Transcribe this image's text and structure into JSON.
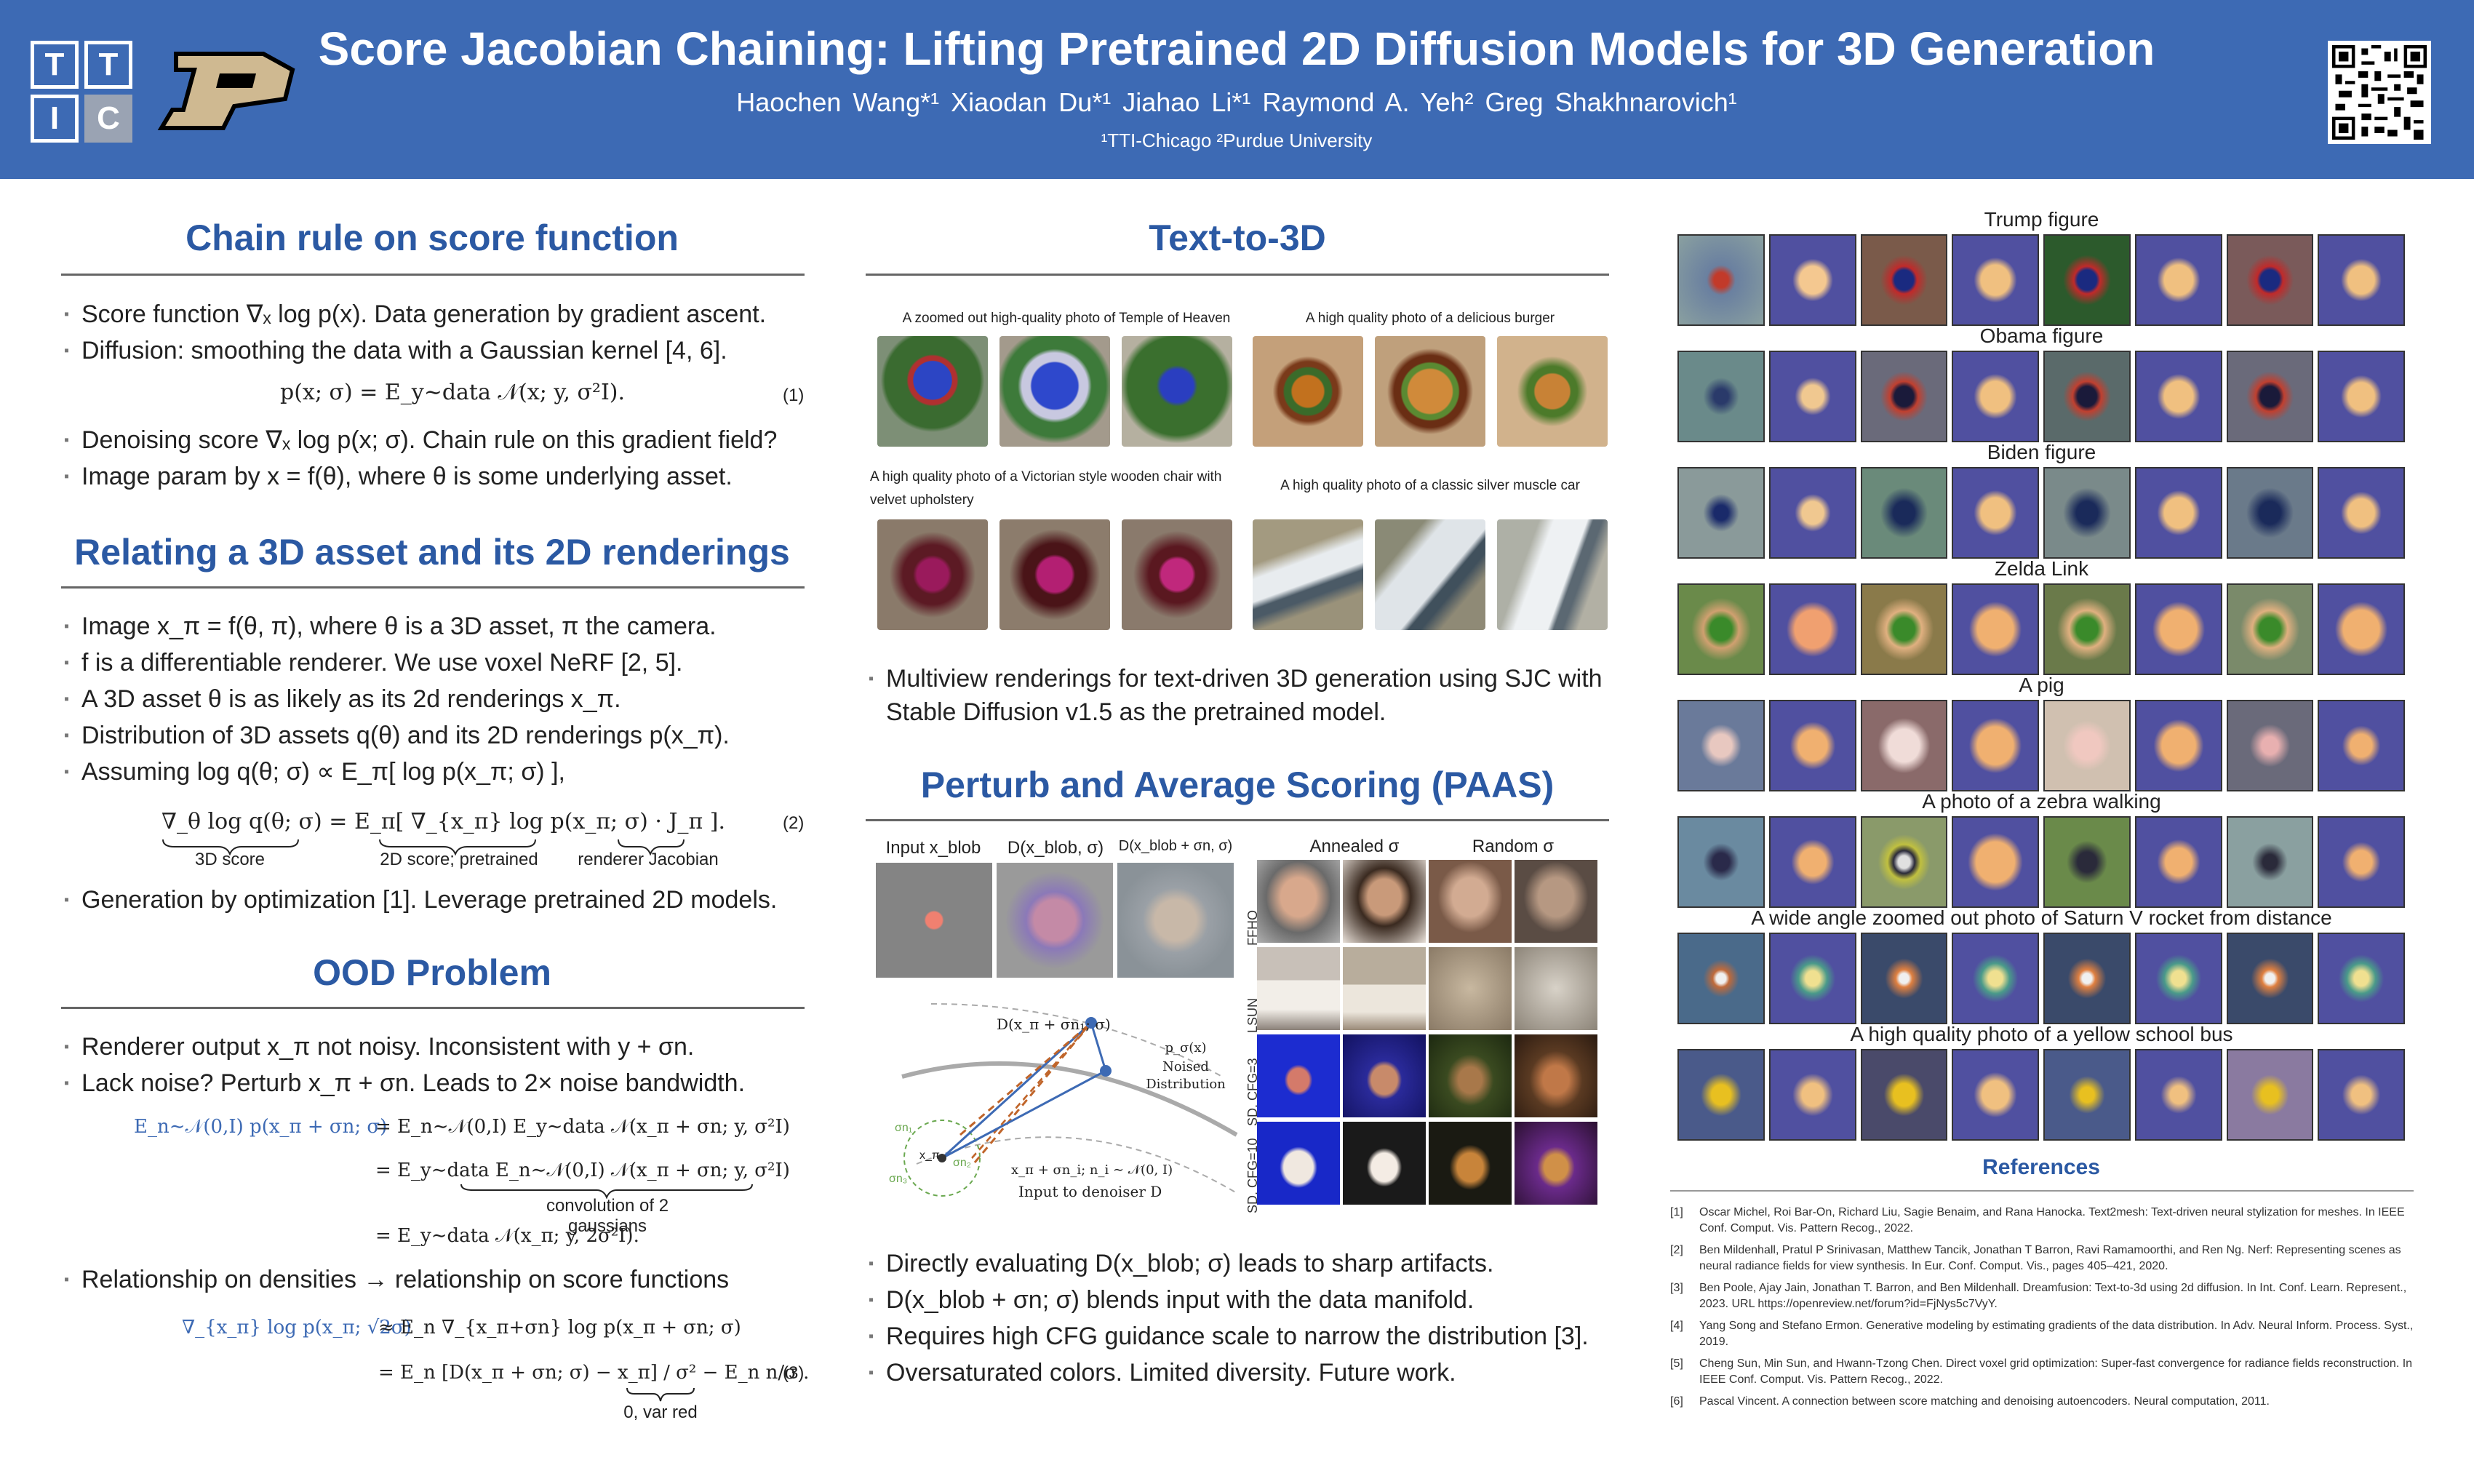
{
  "header": {
    "logo_ttic_letters": [
      "T",
      "T",
      "I",
      "C"
    ],
    "title": "Score Jacobian Chaining: Lifting Pretrained 2D Diffusion Models for 3D Generation",
    "authors": "Haochen Wang*¹   Xiaodan Du*¹   Jiahao Li*¹   Raymond A. Yeh²   Greg Shakhnarovich¹",
    "affiliations": "¹TTI-Chicago      ²Purdue University"
  },
  "sec_chain": {
    "title": "Chain rule on score function",
    "b1": "Score function ∇ₓ log p(x). Data generation by gradient ascent.",
    "b2": "Diffusion: smoothing the data with a Gaussian kernel [4, 6].",
    "eq1": "p(x; σ) = E_y∼data 𝒩(x; y, σ²I).",
    "eq1_num": "(1)",
    "b3": "Denoising score ∇ₓ log p(x; σ). Chain rule on this gradient field?",
    "b4": "Image param by x = f(θ), where θ is some underlying asset."
  },
  "sec_relating": {
    "title": "Relating a 3D asset and its 2D renderings",
    "b1": "Image x_π = f(θ, π), where θ is a 3D asset, π the camera.",
    "b2": "f is a differentiable renderer. We use voxel NeRF [2, 5].",
    "b3": "A 3D asset θ is as likely as its 2d renderings x_π.",
    "b4": "Distribution of 3D assets q(θ) and its 2D renderings p(x_π).",
    "b5": "Assuming log q(θ; σ) ∝ E_π[ log p(x_π; σ) ],",
    "eq2": "∇_θ log q(θ; σ) = E_π[  ∇_{x_π} log p(x_π; σ)   ·   J_π   ].",
    "eq2_num": "(2)",
    "lbl_3d": "3D score",
    "lbl_2d": "2D score; pretrained",
    "lbl_jac": "renderer Jacobian",
    "b6": "Generation by optimization [1]. Leverage pretrained 2D models."
  },
  "sec_ood": {
    "title": "OOD Problem",
    "b1": "Renderer output x_π not noisy. Inconsistent with y + σn.",
    "b2": "Lack noise? Perturb x_π + σn. Leads to 2× noise bandwidth.",
    "eq_a_left": "E_n∼𝒩(0,I) p(x_π + σn; σ)",
    "eq_a_right": "= E_n∼𝒩(0,I) E_y∼data 𝒩(x_π + σn; y, σ²I)",
    "eq_b": "= E_y∼data E_n∼𝒩(0,I) 𝒩(x_π + σn; y, σ²I)",
    "lbl_conv": "convolution of 2 gaussians",
    "eq_c": "= E_y∼data 𝒩(x_π; y, 2σ²I).",
    "b3": "Relationship on densities → relationship on score functions",
    "eq3_left": "∇_{x_π} log p(x_π; √2σ)",
    "eq3_a": "≈ E_n ∇_{x_π+σn} log p(x_π + σn; σ)",
    "eq3_b": "= E_n [D(x_π + σn; σ) − x_π] / σ²  −  E_n n/σ .",
    "eq3_num": "(3)",
    "lbl_var": "0, var red"
  },
  "sec_text3d": {
    "title": "Text-to-3D",
    "cap1": "A zoomed out high-quality photo of Temple of Heaven",
    "cap2": "A high quality photo of a delicious burger",
    "cap3": "A high quality photo of a Victorian style wooden chair with velvet upholstery",
    "cap4": "A high quality photo of a classic silver muscle car",
    "bullet": "Multiview renderings for text-driven 3D generation using SJC with Stable Diffusion v1.5 as the pretrained model."
  },
  "sec_paas": {
    "title": "Perturb and Average Scoring (PAAS)",
    "lbl_input": "Input x_blob",
    "lbl_d1": "D(x_blob, σ)",
    "lbl_d2": "D(x_blob + σn, σ)",
    "lbl_annealed": "Annealed σ",
    "lbl_random": "Random σ",
    "rows": [
      "FFHQ",
      "LSUN",
      "SD, CFG=3",
      "SD, CFG=10"
    ],
    "diag_top": "D(x_π + σn₁; σ)",
    "diag_noised": "p_σ(x)",
    "diag_noised2": "Noised",
    "diag_noised3": "Distribution",
    "diag_bottom": "x_π + σn_i; n_i ∼ 𝒩(0, I)",
    "diag_input": "Input to denoiser D",
    "diag_s1": "σn₁",
    "diag_s2": "σn₂",
    "diag_s3": "σn₃",
    "diag_x": "x_π",
    "b1": "Directly evaluating D(x_blob; σ) leads to sharp artifacts.",
    "b2": "D(x_blob + σn; σ) blends input with the data manifold.",
    "b3": "Requires high CFG guidance scale to narrow the distribution [3].",
    "b4": "Oversaturated colors. Limited diversity. Future work."
  },
  "results": {
    "titles": [
      "Trump figure",
      "Obama figure",
      "Biden figure",
      "Zelda Link",
      "A pig",
      "A photo of a zebra walking",
      "A wide angle zoomed out photo of Saturn V rocket from distance",
      "A high quality photo of a yellow school bus"
    ]
  },
  "references": {
    "title": "References",
    "items": [
      {
        "n": "[1]",
        "t": "Oscar Michel, Roi Bar-On, Richard Liu, Sagie Benaim, and Rana Hanocka. Text2mesh: Text-driven neural stylization for meshes. In IEEE Conf. Comput. Vis. Pattern Recog., 2022."
      },
      {
        "n": "[2]",
        "t": "Ben Mildenhall, Pratul P Srinivasan, Matthew Tancik, Jonathan T Barron, Ravi Ramamoorthi, and Ren Ng. Nerf: Representing scenes as neural radiance fields for view synthesis. In Eur. Conf. Comput. Vis., pages 405–421, 2020."
      },
      {
        "n": "[3]",
        "t": "Ben Poole, Ajay Jain, Jonathan T. Barron, and Ben Mildenhall. Dreamfusion: Text-to-3d using 2d diffusion. In Int. Conf. Learn. Represent., 2023. URL https://openreview.net/forum?id=FjNys5c7VyY."
      },
      {
        "n": "[4]",
        "t": "Yang Song and Stefano Ermon. Generative modeling by estimating gradients of the data distribution. In Adv. Neural Inform. Process. Syst., 2019."
      },
      {
        "n": "[5]",
        "t": "Cheng Sun, Min Sun, and Hwann-Tzong Chen. Direct voxel grid optimization: Super-fast convergence for radiance fields reconstruction. In IEEE Conf. Comput. Vis. Pattern Recog., 2022."
      },
      {
        "n": "[6]",
        "t": "Pascal Vincent. A connection between score matching and denoising autoencoders. Neural computation, 2011."
      }
    ]
  },
  "colors": {
    "header_bg": "#3d6ab4",
    "section_title": "#2b59a3"
  }
}
